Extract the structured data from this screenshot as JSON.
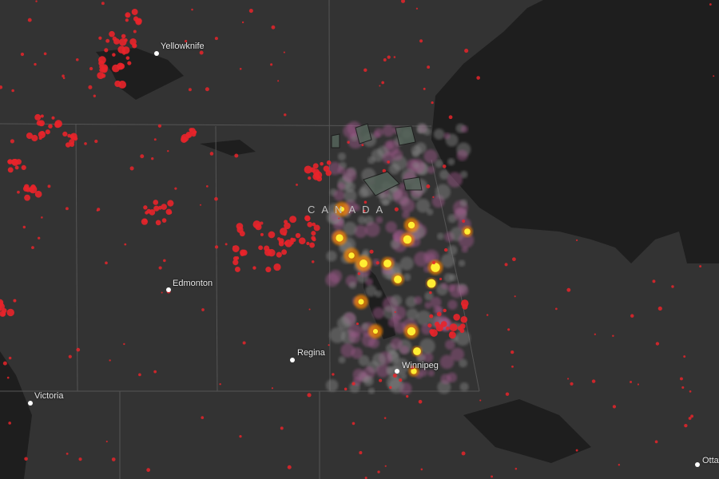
{
  "map": {
    "country_label": "CANADA",
    "cities": [
      {
        "name": "Yellowknife"
      },
      {
        "name": "Edmonton"
      },
      {
        "name": "Regina"
      },
      {
        "name": "Winnipeg"
      },
      {
        "name": "Victoria"
      },
      {
        "name": "Ottawa"
      }
    ],
    "colors": {
      "land": "#333333",
      "water": "#1e1e1e",
      "borders": "#555555",
      "fire_perimeter": "#e8242a",
      "heat_low": "#a05a8c",
      "heat_high": "#ffee33",
      "protected_area": "#55645a"
    }
  }
}
